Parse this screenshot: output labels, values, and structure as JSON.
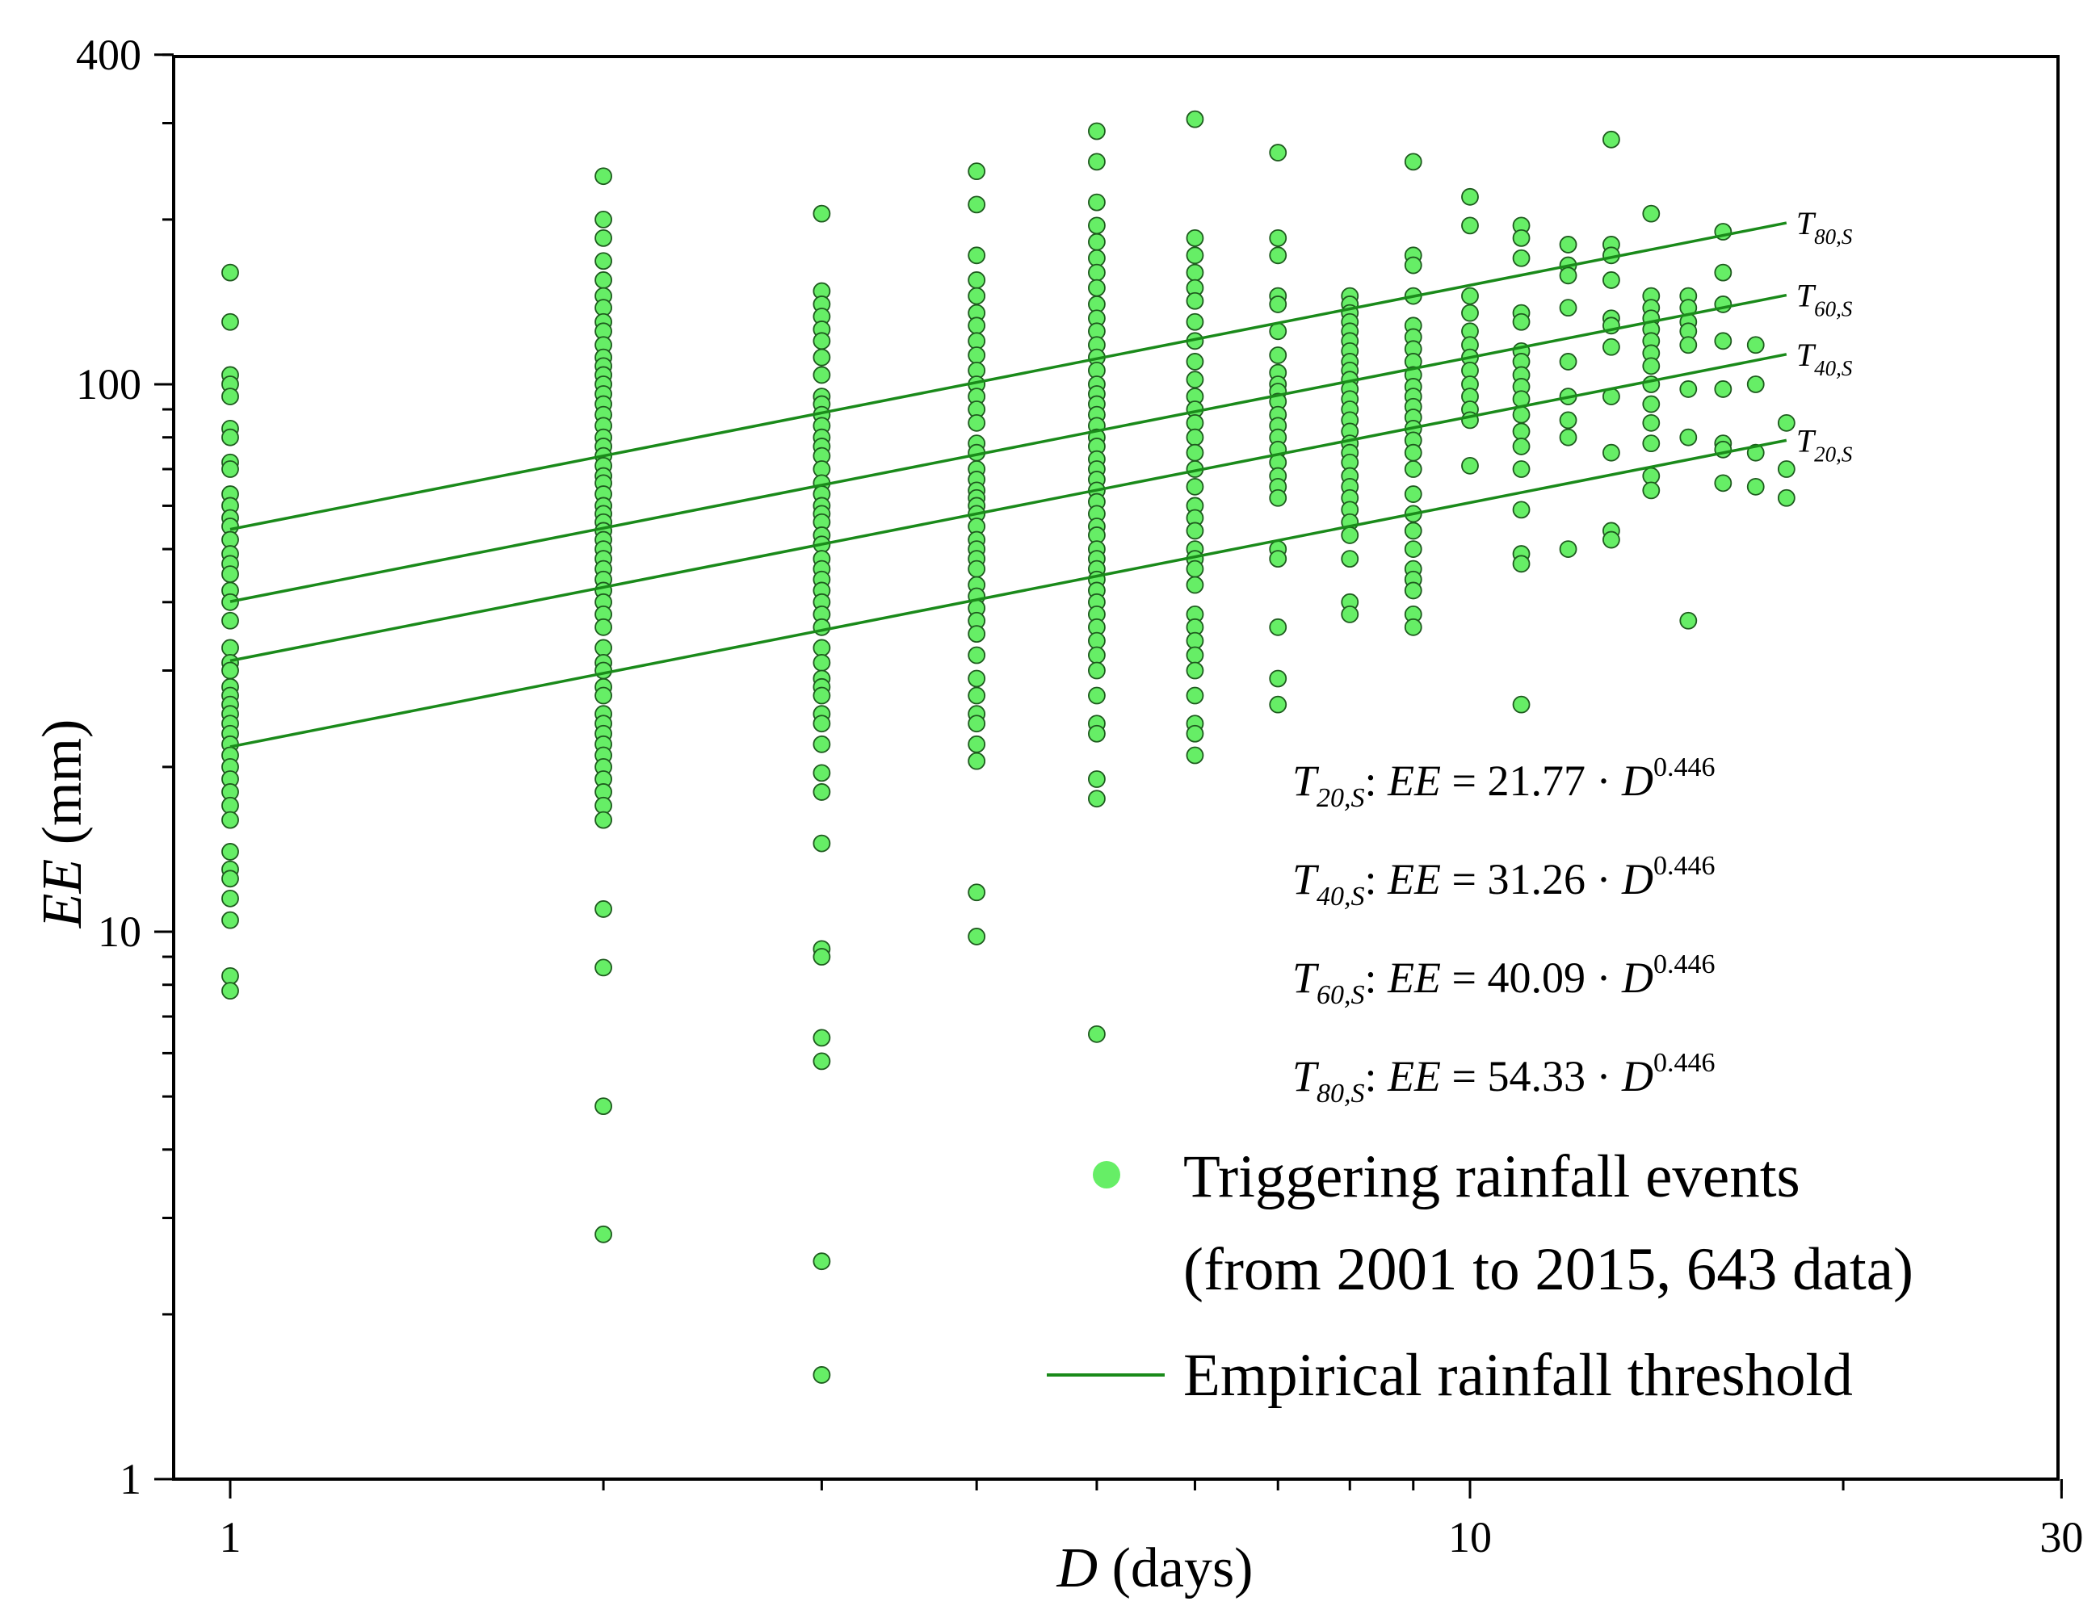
{
  "chart_data": {
    "type": "scatter",
    "x_scale": "log",
    "y_scale": "log",
    "xlim": [
      0.8,
      30
    ],
    "ylim": [
      1,
      400
    ],
    "x_ticks": [
      {
        "value": 1,
        "label": "1"
      },
      {
        "value": 10,
        "label": "10"
      },
      {
        "value": 30,
        "label": "30"
      }
    ],
    "y_ticks": [
      {
        "value": 1,
        "label": "1"
      },
      {
        "value": 10,
        "label": "10"
      },
      {
        "value": 100,
        "label": "100"
      },
      {
        "value": 400,
        "label": "400"
      }
    ],
    "xlabel": {
      "var": "D",
      "unit": " (days)"
    },
    "ylabel": {
      "var": "EE",
      "unit": " (mm)"
    },
    "scatter_series": {
      "name": "Triggering rainfall events (from 2001 to 2015, 643 data)",
      "color": "#66ee66",
      "points": [
        {
          "x": 1,
          "y": [
            160,
            130,
            104,
            100,
            95,
            83,
            80,
            72,
            70,
            63,
            60,
            57,
            55,
            52,
            49,
            47,
            45,
            42,
            40,
            37,
            33,
            31,
            30,
            28,
            27,
            26,
            25,
            24,
            23,
            22,
            21,
            20,
            19,
            18,
            17,
            16,
            14,
            13,
            12.5,
            11.5,
            10.5,
            8.3,
            7.8
          ]
        },
        {
          "x": 2,
          "y": [
            240,
            200,
            185,
            168,
            155,
            145,
            138,
            130,
            125,
            118,
            112,
            108,
            104,
            100,
            96,
            92,
            88,
            84,
            80,
            77,
            74,
            71,
            68,
            66,
            63,
            60,
            58,
            56,
            54,
            52,
            50,
            48,
            46,
            44,
            42,
            40,
            38,
            36,
            33,
            31,
            30,
            28,
            27,
            25,
            24,
            23,
            22,
            21,
            20,
            19,
            18,
            17,
            16,
            11,
            8.6,
            4.8,
            2.8
          ]
        },
        {
          "x": 3,
          "y": [
            205,
            148,
            140,
            133,
            126,
            120,
            112,
            104,
            95,
            92,
            88,
            84,
            80,
            77,
            74,
            70,
            66,
            63,
            60,
            58,
            56,
            53,
            51,
            48,
            46,
            44,
            42,
            40,
            38,
            36,
            33,
            31,
            29,
            28,
            27,
            25,
            24,
            22,
            19.5,
            18,
            14.5,
            9.3,
            9,
            6.4,
            5.8,
            2.5,
            1.55
          ]
        },
        {
          "x": 4,
          "y": [
            245,
            213,
            172,
            155,
            145,
            135,
            128,
            120,
            113,
            106,
            100,
            95,
            90,
            85,
            78,
            75,
            70,
            67,
            64,
            62,
            60,
            58,
            55,
            52,
            50,
            48,
            46,
            43,
            41,
            39,
            37,
            35,
            32,
            29,
            27,
            25,
            24,
            22,
            20.5,
            11.8,
            9.8
          ]
        },
        {
          "x": 5,
          "y": [
            290,
            255,
            215,
            195,
            182,
            170,
            160,
            150,
            140,
            132,
            125,
            118,
            112,
            106,
            100,
            96,
            92,
            88,
            84,
            80,
            77,
            73,
            70,
            67,
            64,
            61,
            58,
            55,
            53,
            50,
            48,
            46,
            44,
            42,
            40,
            38,
            36,
            34,
            32,
            30,
            27,
            24,
            23,
            19,
            17.5,
            6.5
          ]
        },
        {
          "x": 6,
          "y": [
            305,
            185,
            172,
            160,
            150,
            142,
            130,
            120,
            110,
            102,
            95,
            90,
            85,
            80,
            75,
            70,
            65,
            60,
            57,
            54,
            50,
            48,
            46,
            43,
            38,
            36,
            34,
            32,
            30,
            27,
            24,
            23,
            21
          ]
        },
        {
          "x": 7,
          "y": [
            265,
            185,
            172,
            145,
            140,
            125,
            113,
            105,
            100,
            97,
            93,
            88,
            84,
            80,
            76,
            72,
            68,
            65,
            62,
            50,
            48,
            36,
            29,
            26
          ]
        },
        {
          "x": 8,
          "y": [
            145,
            140,
            135,
            130,
            125,
            120,
            115,
            110,
            106,
            102,
            98,
            94,
            90,
            86,
            82,
            78,
            75,
            72,
            68,
            65,
            62,
            59,
            56,
            53,
            48,
            40,
            38
          ]
        },
        {
          "x": 9,
          "y": [
            255,
            172,
            165,
            145,
            128,
            122,
            116,
            110,
            104,
            99,
            95,
            91,
            87,
            83,
            79,
            75,
            70,
            63,
            58,
            54,
            50,
            46,
            44,
            42,
            38,
            36
          ]
        },
        {
          "x": 10,
          "y": [
            220,
            195,
            145,
            135,
            125,
            118,
            112,
            106,
            100,
            95,
            90,
            86,
            71
          ]
        },
        {
          "x": 11,
          "y": [
            195,
            185,
            170,
            135,
            130,
            115,
            110,
            104,
            99,
            94,
            88,
            82,
            77,
            70,
            59,
            49,
            47,
            26
          ]
        },
        {
          "x": 12,
          "y": [
            180,
            165,
            158,
            138,
            110,
            95,
            86,
            80,
            50
          ]
        },
        {
          "x": 13,
          "y": [
            280,
            180,
            172,
            155,
            132,
            128,
            117,
            95,
            75,
            54,
            52
          ]
        },
        {
          "x": 14,
          "y": [
            205,
            145,
            138,
            132,
            126,
            120,
            114,
            108,
            100,
            92,
            85,
            78,
            68,
            64
          ]
        },
        {
          "x": 15,
          "y": [
            145,
            138,
            130,
            125,
            118,
            98,
            80,
            37
          ]
        },
        {
          "x": 16,
          "y": [
            190,
            160,
            140,
            120,
            98,
            78,
            76,
            66
          ]
        },
        {
          "x": 17,
          "y": [
            118,
            100,
            75,
            65
          ]
        },
        {
          "x": 18,
          "y": [
            85,
            70,
            62
          ]
        }
      ]
    },
    "threshold_series": {
      "name": "Empirical rainfall threshold",
      "color": "#1a8a1a",
      "x_range": [
        1,
        18
      ],
      "exponent": 0.446,
      "lines": [
        {
          "label_main": "T",
          "label_sub": "80,S",
          "coef": 54.33
        },
        {
          "label_main": "T",
          "label_sub": "60,S",
          "coef": 40.09
        },
        {
          "label_main": "T",
          "label_sub": "40,S",
          "coef": 31.26
        },
        {
          "label_main": "T",
          "label_sub": "20,S",
          "coef": 21.77
        }
      ]
    },
    "equations": [
      {
        "t": "T",
        "sub": "20,S",
        "lhs": "EE",
        "rhs": " = 21.77 · ",
        "d": "D",
        "exp": "0.446"
      },
      {
        "t": "T",
        "sub": "40,S",
        "lhs": "EE",
        "rhs": " = 31.26 · ",
        "d": "D",
        "exp": "0.446"
      },
      {
        "t": "T",
        "sub": "60,S",
        "lhs": "EE",
        "rhs": " = 40.09 · ",
        "d": "D",
        "exp": "0.446"
      },
      {
        "t": "T",
        "sub": "80,S",
        "lhs": "EE",
        "rhs": " = 54.33 · ",
        "d": "D",
        "exp": "0.446"
      }
    ],
    "equation_separator": ":",
    "legend": {
      "scatter_label_line1": "Triggering rainfall events",
      "scatter_label_line2": "(from 2001 to 2015, 643 data)",
      "line_label": "Empirical rainfall threshold",
      "position": "bottom-right"
    }
  }
}
